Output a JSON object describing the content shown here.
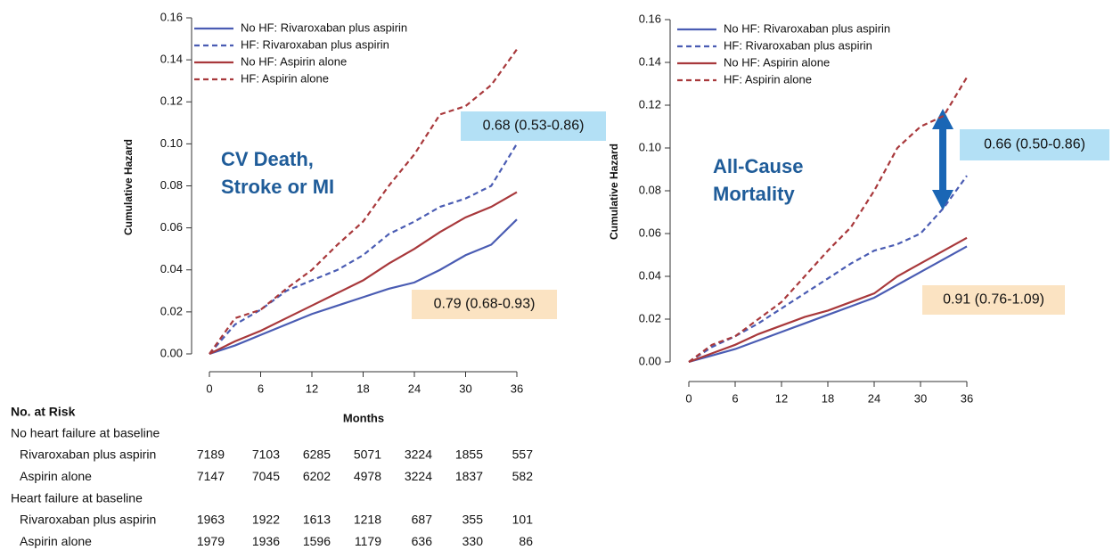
{
  "chart_data": [
    {
      "type": "line",
      "title_lines": [
        "CV Death,",
        "Stroke or MI"
      ],
      "y_label": "Cumulative Hazard",
      "x_label": "Months",
      "x": [
        0,
        3,
        6,
        9,
        12,
        15,
        18,
        21,
        24,
        27,
        30,
        33,
        36
      ],
      "xlim": [
        0,
        36
      ],
      "xticks": [
        0,
        6,
        12,
        18,
        24,
        30,
        36
      ],
      "ylim": [
        0,
        0.16
      ],
      "yticks": [
        {
          "value": 0,
          "label": "0.00"
        },
        0.02,
        0.04,
        0.06,
        0.08,
        {
          "value": 0.1,
          "label": "0.10"
        },
        0.12,
        0.14,
        0.16
      ],
      "series": [
        {
          "name": "No HF: Rivaroxaban plus aspirin",
          "color": "#4a5cb3",
          "dashed": false,
          "values": [
            0,
            0.004,
            0.009,
            0.014,
            0.019,
            0.023,
            0.027,
            0.031,
            0.034,
            0.04,
            0.047,
            0.052,
            0.064
          ]
        },
        {
          "name": "HF: Rivaroxaban plus aspirin",
          "color": "#4a5cb3",
          "dashed": true,
          "values": [
            0,
            0.014,
            0.021,
            0.03,
            0.035,
            0.04,
            0.047,
            0.057,
            0.063,
            0.07,
            0.074,
            0.08,
            0.1
          ]
        },
        {
          "name": "No HF: Aspirin alone",
          "color": "#a8383b",
          "dashed": false,
          "values": [
            0,
            0.006,
            0.011,
            0.017,
            0.023,
            0.029,
            0.035,
            0.043,
            0.05,
            0.058,
            0.065,
            0.07,
            0.077
          ]
        },
        {
          "name": "HF: Aspirin alone",
          "color": "#a8383b",
          "dashed": true,
          "values": [
            0,
            0.017,
            0.021,
            0.031,
            0.04,
            0.052,
            0.063,
            0.08,
            0.095,
            0.114,
            0.118,
            0.128,
            0.145
          ]
        }
      ],
      "annotations": [
        {
          "text": "0.68 (0.53-0.86)",
          "color": "#b3e0f5"
        },
        {
          "text": "0.79 (0.68-0.93)",
          "color": "#fbe3c2"
        }
      ]
    },
    {
      "type": "line",
      "title_lines": [
        "All-Cause",
        "Mortality"
      ],
      "y_label": "Cumulative Hazard",
      "x": [
        0,
        3,
        6,
        9,
        12,
        15,
        18,
        21,
        24,
        27,
        30,
        33,
        36
      ],
      "xlim": [
        0,
        36
      ],
      "xticks": [
        0,
        6,
        12,
        18,
        24,
        30,
        36
      ],
      "ylim": [
        0,
        0.16
      ],
      "yticks": [
        {
          "value": 0,
          "label": "0.00"
        },
        0.02,
        0.04,
        0.06,
        0.08,
        {
          "value": 0.1,
          "label": "0.10"
        },
        0.12,
        0.14,
        0.16
      ],
      "series": [
        {
          "name": "No HF: Rivaroxaban plus aspirin",
          "color": "#4a5cb3",
          "dashed": false,
          "values": [
            0,
            0.003,
            0.006,
            0.01,
            0.014,
            0.018,
            0.022,
            0.026,
            0.03,
            0.036,
            0.042,
            0.048,
            0.054
          ]
        },
        {
          "name": "HF: Rivaroxaban plus aspirin",
          "color": "#4a5cb3",
          "dashed": true,
          "values": [
            0,
            0.007,
            0.012,
            0.018,
            0.025,
            0.032,
            0.039,
            0.046,
            0.052,
            0.055,
            0.06,
            0.072,
            0.087
          ]
        },
        {
          "name": "No HF: Aspirin alone",
          "color": "#a8383b",
          "dashed": false,
          "values": [
            0,
            0.004,
            0.008,
            0.013,
            0.017,
            0.021,
            0.024,
            0.028,
            0.032,
            0.04,
            0.046,
            0.052,
            0.058
          ]
        },
        {
          "name": "HF: Aspirin alone",
          "color": "#a8383b",
          "dashed": true,
          "values": [
            0,
            0.008,
            0.012,
            0.02,
            0.028,
            0.04,
            0.052,
            0.063,
            0.08,
            0.1,
            0.11,
            0.115,
            0.133
          ]
        }
      ],
      "annotations": [
        {
          "text": "0.66 (0.50-0.86)",
          "color": "#b3e0f5"
        },
        {
          "text": "0.91 (0.76-1.09)",
          "color": "#fbe3c2"
        }
      ]
    }
  ],
  "risk_table": {
    "title": "No. at Risk",
    "groups": [
      {
        "label": "No heart failure at baseline",
        "rows": [
          {
            "name": "Rivaroxaban plus aspirin",
            "values": [
              "7189",
              "7103",
              "6285",
              "5071",
              "3224",
              "1855",
              "557"
            ]
          },
          {
            "name": "Aspirin alone",
            "values": [
              "7147",
              "7045",
              "6202",
              "4978",
              "3224",
              "1837",
              "582"
            ]
          }
        ]
      },
      {
        "label": "Heart failure at baseline",
        "rows": [
          {
            "name": "Rivaroxaban plus aspirin",
            "values": [
              "1963",
              "1922",
              "1613",
              "1218",
              "687",
              "355",
              "101"
            ]
          },
          {
            "name": "Aspirin alone",
            "values": [
              "1979",
              "1936",
              "1596",
              "1179",
              "636",
              "330",
              "86"
            ]
          }
        ]
      }
    ]
  }
}
